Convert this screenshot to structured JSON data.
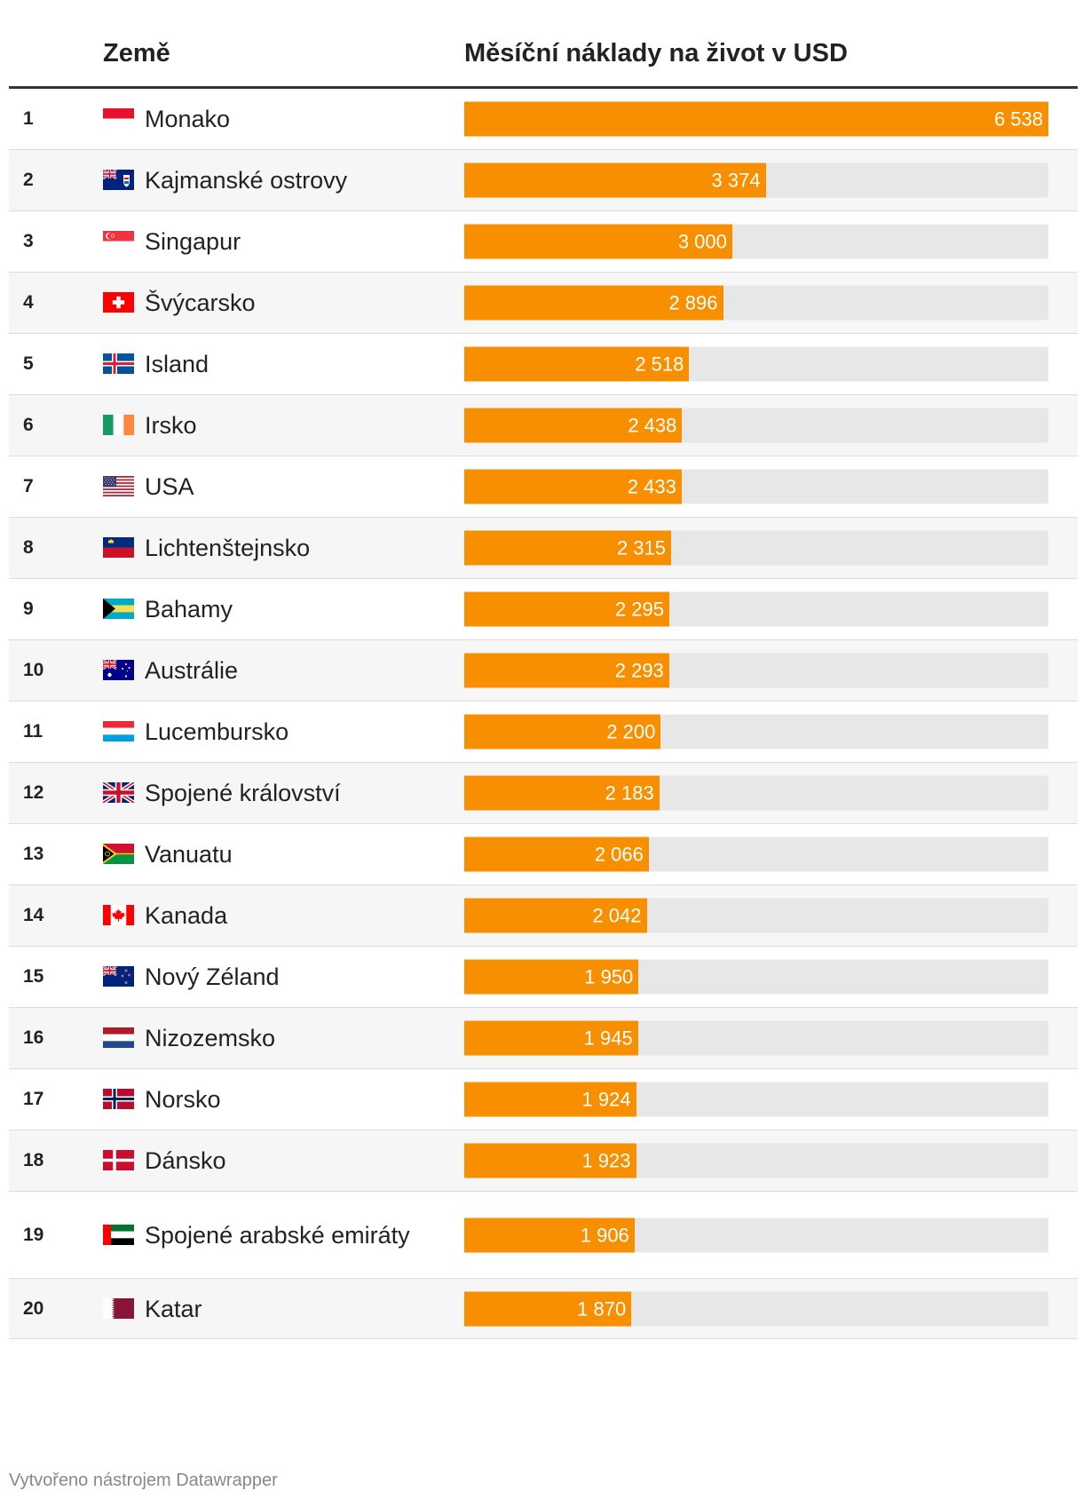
{
  "table": {
    "header_country": "Země",
    "header_value": "Měsíční náklady na život v USD"
  },
  "footer": "Vytvořeno nástrojem Datawrapper",
  "colors": {
    "bar": "#f78f00",
    "track": "#e7e7e7"
  },
  "chart_data": {
    "type": "bar",
    "title": "",
    "xlabel": "Země",
    "ylabel": "Měsíční náklady na život v USD",
    "ylim": [
      0,
      6538
    ],
    "ranks": [
      "1",
      "2",
      "3",
      "4",
      "5",
      "6",
      "7",
      "8",
      "9",
      "10",
      "11",
      "12",
      "13",
      "14",
      "15",
      "16",
      "17",
      "18",
      "19",
      "20"
    ],
    "categories": [
      "Monako",
      "Kajmanské ostrovy",
      "Singapur",
      "Švýcarsko",
      "Island",
      "Irsko",
      "USA",
      "Lichtenštejnsko",
      "Bahamy",
      "Austrálie",
      "Lucembursko",
      "Spojené království",
      "Vanuatu",
      "Kanada",
      "Nový Zéland",
      "Nizozemsko",
      "Norsko",
      "Dánsko",
      "Spojené arabské emiráty",
      "Katar"
    ],
    "values": [
      6538,
      3374,
      3000,
      2896,
      2518,
      2438,
      2433,
      2315,
      2295,
      2293,
      2200,
      2183,
      2066,
      2042,
      1950,
      1945,
      1924,
      1923,
      1906,
      1870
    ],
    "value_labels": [
      "6 538",
      "3 374",
      "3 000",
      "2 896",
      "2 518",
      "2 438",
      "2 433",
      "2 315",
      "2 295",
      "2 293",
      "2 200",
      "2 183",
      "2 066",
      "2 042",
      "1 950",
      "1 945",
      "1 924",
      "1 923",
      "1 906",
      "1 870"
    ],
    "flags": [
      "monaco-flag-icon",
      "cayman-islands-flag-icon",
      "singapore-flag-icon",
      "switzerland-flag-icon",
      "iceland-flag-icon",
      "ireland-flag-icon",
      "usa-flag-icon",
      "liechtenstein-flag-icon",
      "bahamas-flag-icon",
      "australia-flag-icon",
      "luxembourg-flag-icon",
      "uk-flag-icon",
      "vanuatu-flag-icon",
      "canada-flag-icon",
      "new-zealand-flag-icon",
      "netherlands-flag-icon",
      "norway-flag-icon",
      "denmark-flag-icon",
      "uae-flag-icon",
      "qatar-flag-icon"
    ]
  }
}
